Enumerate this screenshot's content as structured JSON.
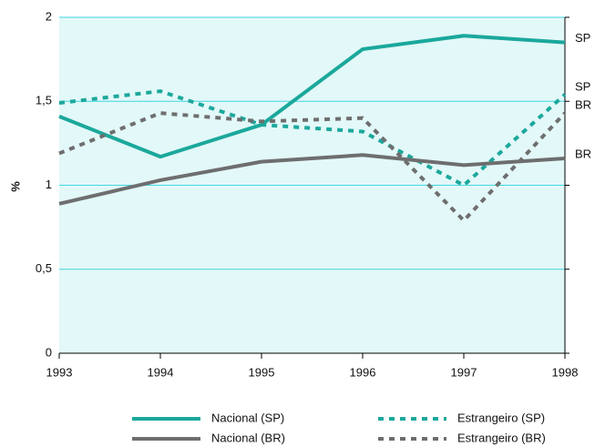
{
  "chart_data": {
    "type": "line",
    "y_label": "%",
    "x": [
      1993,
      1994,
      1995,
      1996,
      1997,
      1998
    ],
    "xlim": [
      1993,
      1998
    ],
    "xticks": [
      1993,
      1994,
      1995,
      1996,
      1997,
      1998
    ],
    "ylim": [
      0,
      2
    ],
    "yticks": [
      0,
      {
        "value": 0.5,
        "label": "0,5"
      },
      1,
      {
        "value": 1.5,
        "label": "1,5"
      },
      2
    ],
    "grid": true,
    "series": [
      {
        "name": "Nacional (SP)",
        "color": "#1ba89c",
        "dash": false,
        "end_label": "SP",
        "values": [
          1.41,
          1.17,
          1.36,
          1.81,
          1.89,
          1.85
        ]
      },
      {
        "name": "Estrangeiro (SP)",
        "color": "#1ba89c",
        "dash": true,
        "end_label": "SP",
        "values": [
          1.49,
          1.56,
          1.36,
          1.32,
          1.0,
          1.54
        ]
      },
      {
        "name": "Nacional (BR)",
        "color": "#6e6e6e",
        "dash": false,
        "end_label": "BR",
        "values": [
          0.89,
          1.03,
          1.14,
          1.18,
          1.12,
          1.16
        ]
      },
      {
        "name": "Estrangeiro (BR)",
        "color": "#6e6e6e",
        "dash": true,
        "end_label": "BR",
        "values": [
          1.19,
          1.43,
          1.38,
          1.4,
          0.79,
          1.43
        ]
      }
    ]
  }
}
